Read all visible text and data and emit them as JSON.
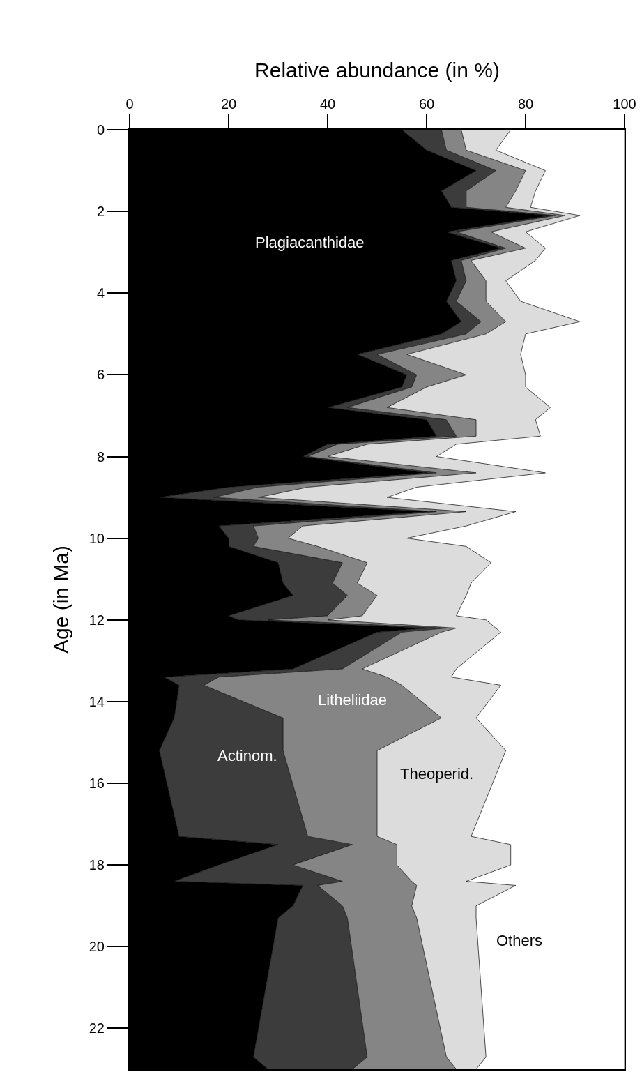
{
  "chart_data": {
    "type": "area",
    "stacked": true,
    "orientation": "horizontal",
    "xlabel": "Relative abundance (in %)",
    "ylabel": "Age (in Ma)",
    "x": [
      0,
      0.5,
      1.0,
      1.5,
      1.9,
      2.1,
      2.5,
      2.9,
      3.2,
      3.7,
      4.2,
      4.7,
      5.0,
      5.5,
      6.0,
      6.3,
      6.8,
      7.1,
      7.5,
      7.7,
      8.0,
      8.4,
      8.75,
      9.0,
      9.35,
      9.7,
      10.0,
      10.2,
      10.6,
      11.1,
      11.4,
      11.9,
      12.0,
      12.2,
      12.3,
      13.2,
      13.4,
      13.6,
      14.4,
      15.2,
      17.3,
      17.5,
      18.0,
      18.4,
      18.5,
      19.0,
      19.3,
      22.7,
      23.0
    ],
    "series": [
      {
        "name": "Plagiacanthidae",
        "color": "#000000",
        "values": [
          55,
          60,
          70,
          63,
          65,
          85,
          64,
          75,
          65,
          66,
          64,
          67,
          63,
          46,
          56,
          55,
          40,
          60,
          62,
          40,
          35,
          60,
          20,
          6,
          60,
          18,
          20,
          20,
          30,
          31,
          33,
          20,
          22,
          60,
          50,
          33,
          7,
          10,
          9,
          6,
          10,
          30,
          18,
          9,
          35,
          33,
          30,
          25,
          28
        ]
      },
      {
        "name": "Actinom.",
        "color": "#3c3c3c",
        "values": [
          8,
          4,
          4,
          5,
          3,
          1,
          2,
          1,
          2,
          2,
          2,
          4,
          5,
          4,
          2,
          2,
          4,
          4,
          4,
          2,
          1,
          2,
          6,
          11,
          2,
          7,
          6,
          5,
          13,
          10,
          11,
          20,
          6,
          4,
          5,
          10,
          11,
          5,
          22,
          25,
          26,
          15,
          15,
          34,
          3,
          10,
          14,
          23,
          17
        ]
      },
      {
        "name": "Litheliidae",
        "color": "#858585",
        "values": [
          4,
          4,
          6,
          10,
          8,
          2,
          7,
          4,
          2,
          4,
          6,
          5,
          4,
          6,
          10,
          3,
          8,
          6,
          4,
          6,
          4,
          8,
          10,
          9,
          6,
          10,
          6,
          13,
          5,
          5,
          6,
          7,
          12,
          2,
          8,
          4,
          34,
          40,
          32,
          19,
          14,
          9,
          21,
          14,
          20,
          14,
          14,
          16,
          21
        ]
      },
      {
        "name": "Theoperid.",
        "color": "#dcdcdc",
        "values": [
          10,
          6,
          4,
          4,
          5,
          3,
          7,
          4,
          13,
          4,
          7,
          15,
          8,
          23,
          12,
          20,
          33,
          12,
          13,
          18,
          22,
          14,
          22,
          26,
          10,
          33,
          24,
          30,
          25,
          23,
          18,
          19,
          32,
          8,
          12,
          19,
          13,
          20,
          7,
          26,
          19,
          23,
          23,
          11,
          20,
          13,
          12,
          8,
          4
        ]
      },
      {
        "name": "Others",
        "color": "#ffffff",
        "values": [
          23,
          26,
          16,
          18,
          19,
          9,
          20,
          16,
          18,
          24,
          21,
          9,
          20,
          21,
          20,
          20,
          15,
          18,
          17,
          34,
          38,
          16,
          42,
          48,
          22,
          32,
          44,
          32,
          27,
          31,
          32,
          34,
          28,
          26,
          25,
          34,
          35,
          25,
          30,
          24,
          31,
          23,
          23,
          32,
          22,
          30,
          30,
          28,
          30
        ]
      }
    ],
    "xlim": [
      0,
      100
    ],
    "xticks": [
      0,
      20,
      40,
      60,
      80,
      100
    ],
    "ylim": [
      23,
      0
    ],
    "yticks": [
      0,
      2,
      4,
      6,
      8,
      10,
      12,
      14,
      16,
      18,
      20,
      22
    ],
    "legend": false
  }
}
